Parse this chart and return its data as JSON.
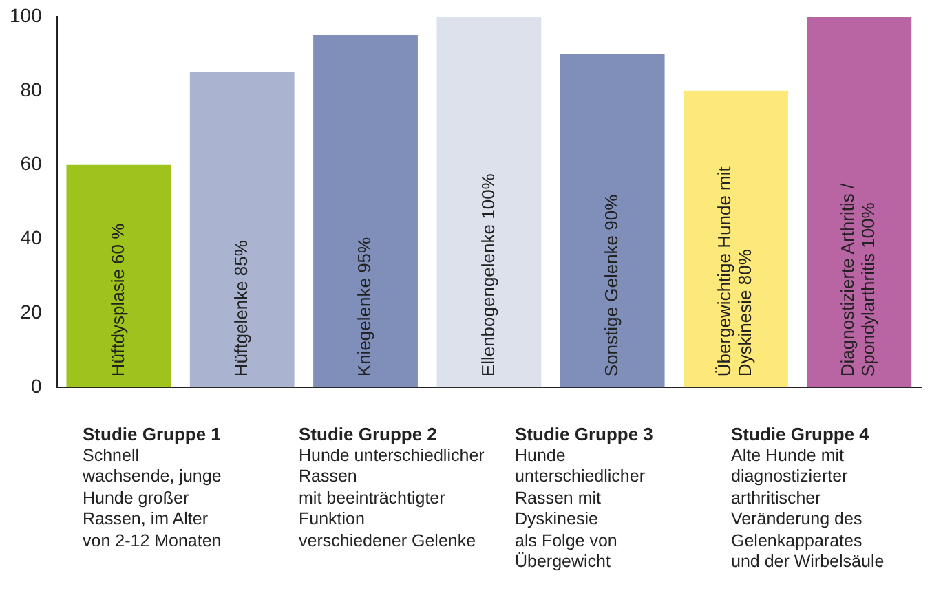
{
  "chart_data": {
    "type": "bar",
    "categories": [
      null,
      null,
      null,
      null,
      null,
      null,
      null
    ],
    "values": [
      60,
      85,
      95,
      100,
      90,
      80,
      100
    ],
    "colors": [
      "#9dc31c",
      "#aab3cf",
      "#7f8fba",
      "#dde1eb",
      "#7f8fba",
      "#fde87a",
      "#b964a3"
    ],
    "value_labels": [
      "Hüftdysplasie 60 %",
      "Hüftgelenke 85%",
      "Kniegelenke 95%",
      "Ellenbogengelenke 100%",
      "Sonstige Gelenke 90%",
      "Übergewichtige Hunde mit\nDyskinesie 80%",
      "Diagnostizierte Arthritis /\nSpondylarthritis 100%"
    ],
    "ylim": [
      0,
      100
    ],
    "yticks": [
      0,
      20,
      40,
      60,
      80,
      100
    ],
    "grid": false,
    "legend": false,
    "annotations": [
      "Studie Gruppe 1\nSchnell\nwachsende, junge\nHunde großer\nRassen, im Alter\nvon 2-12 Monaten",
      "Studie Gruppe 2\nHunde unterschiedlicher Rassen\nmit beeinträchtigter Funktion\nverschiedener Gelenke",
      "Studie Gruppe 3\nHunde\nunterschiedlicher\nRassen mit\nDyskinesie\nals Folge von\nÜbergewicht",
      "Studie Gruppe 4\nAlte Hunde mit\ndiagnostizierter\narthritischer\nVeränderung des\nGelenkapparates\nund der Wirbelsäule"
    ]
  }
}
